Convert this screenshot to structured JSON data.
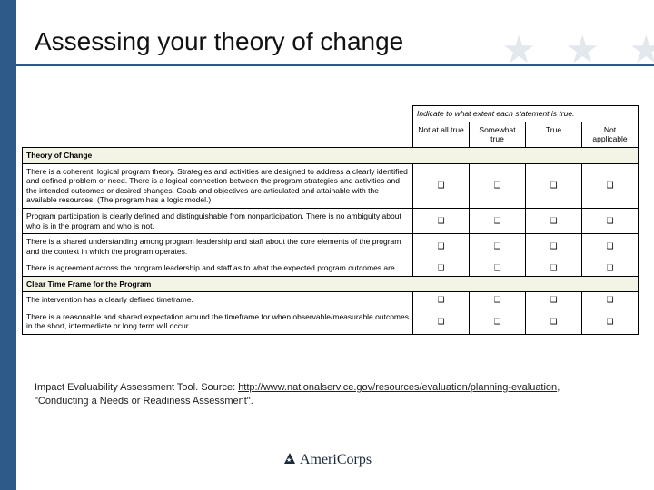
{
  "title": "Assessing your theory of change",
  "table": {
    "scale_intro": "Indicate to what extent each statement is true.",
    "columns": [
      "Not at all true",
      "Somewhat true",
      "True",
      "Not applicable"
    ],
    "box_glyph": "❑",
    "sections": [
      {
        "heading": "Theory of Change",
        "rows": [
          "There is a coherent, logical program theory. Strategies and activities are designed to address a clearly identified and defined problem or need. There is a logical connection between the program strategies and activities and the intended outcomes or desired changes. Goals and objectives are articulated and attainable with the available resources. (The program has a logic model.)",
          "Program participation is clearly defined and distinguishable from nonparticipation. There is no ambiguity about who is in the program and who is not.",
          "There is a shared understanding among program leadership and staff about the core elements of the program and the context in which the program operates.",
          "There is agreement across the program leadership and staff as to what the expected program outcomes are."
        ]
      },
      {
        "heading": "Clear Time Frame for the Program",
        "rows": [
          "The intervention has a clearly defined timeframe.",
          "There is a reasonable and shared expectation around the timeframe for when observable/measurable outcomes in the short, intermediate or long term will occur."
        ]
      }
    ]
  },
  "source": {
    "prefix": "Impact Evaluability Assessment Tool. Source: ",
    "link_text": "http://www.nationalservice.gov/resources/evaluation/planning-evaluation",
    "suffix": ", \"Conducting a Needs or Readiness Assessment\"."
  },
  "logo_text": "AmeriCorps"
}
